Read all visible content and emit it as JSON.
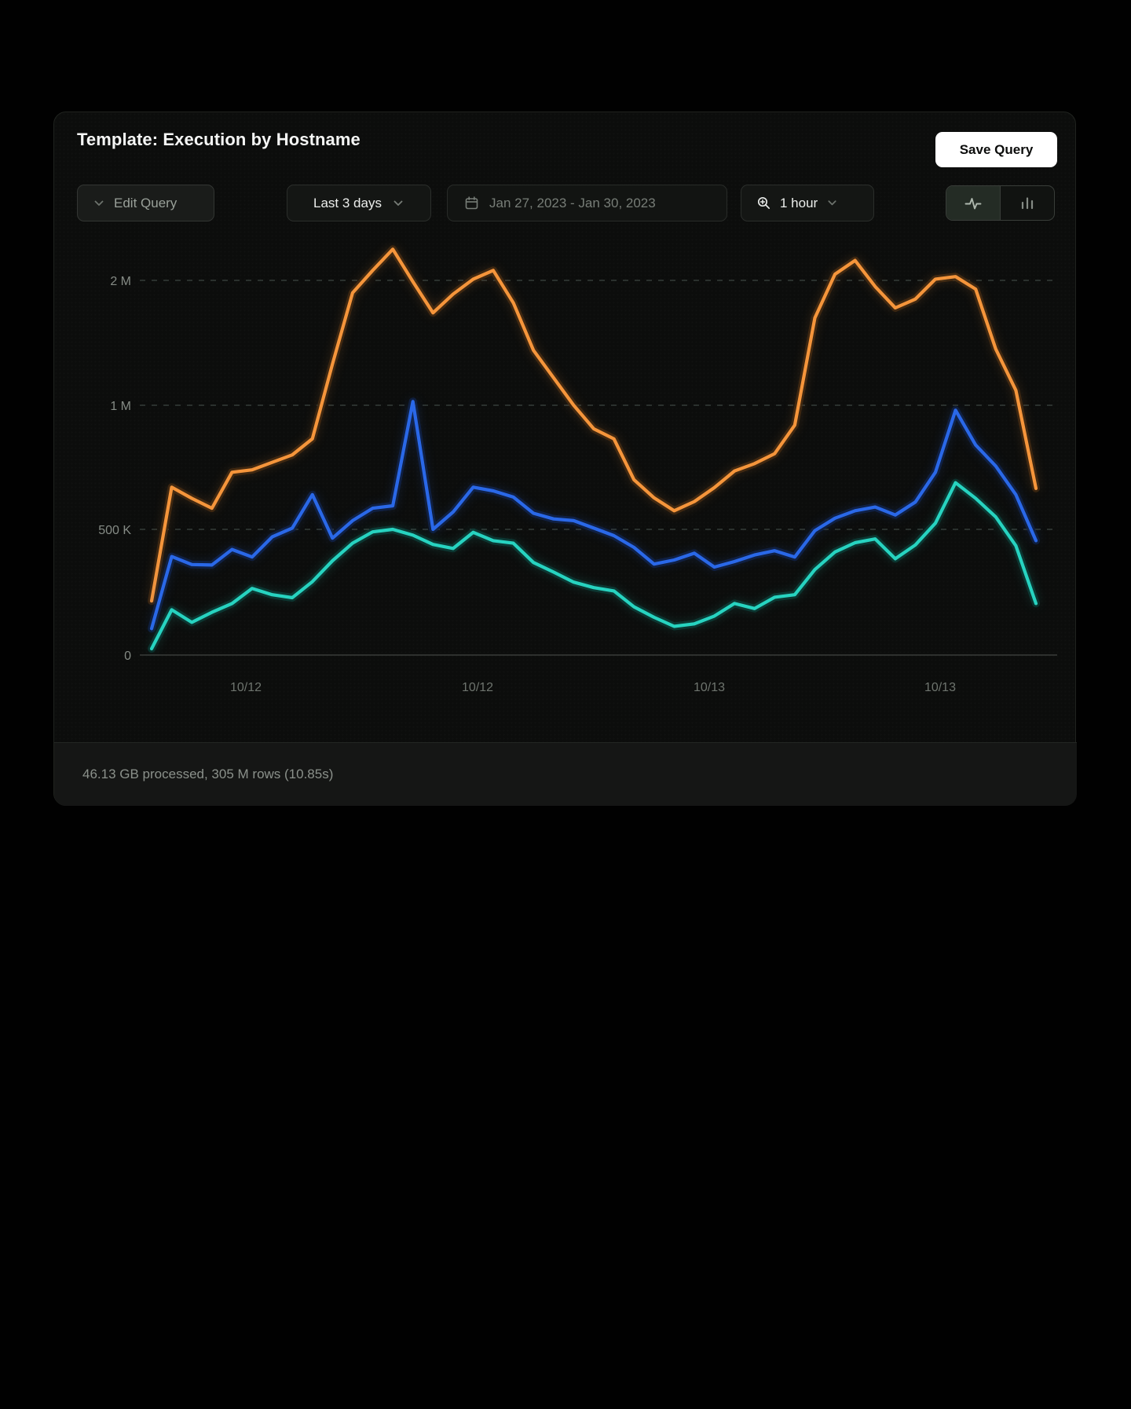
{
  "header": {
    "title": "Template: Execution by Hostname",
    "save_button": "Save Query"
  },
  "toolbar": {
    "edit_query_label": "Edit Query",
    "time_range_label": "Last 3 days",
    "date_range_label": "Jan 27, 2023 - Jan 30, 2023",
    "granularity_label": "1 hour",
    "icons": [
      "chevron-down",
      "calendar",
      "zoom-in",
      "activity-pulse",
      "bar-chart"
    ]
  },
  "footer": {
    "status": "46.13 GB processed, 305 M rows (10.85s)"
  },
  "chart_data": {
    "type": "line",
    "title": "",
    "xlabel": "",
    "ylabel": "",
    "grid": "dashed-horizontal",
    "legend": "none",
    "x_axis": {
      "labels": [
        "10/12",
        "10/12",
        "10/13",
        "10/13"
      ]
    },
    "y_axis": {
      "ticks": [
        {
          "label": "2 M",
          "value": 2000000
        },
        {
          "label": "1 M",
          "value": 1000000
        },
        {
          "label": "500 K",
          "value": 500000
        },
        {
          "label": "0",
          "value": 0
        }
      ],
      "scale": "doubling-per-step"
    },
    "series": [
      {
        "name": "series-orange",
        "color": "#F5953B",
        "halo": "#3a250f",
        "values": [
          215000,
          670000,
          625000,
          585000,
          730000,
          740000,
          770000,
          800000,
          865000,
          1330000,
          1900000,
          2080000,
          2250000,
          1990000,
          1740000,
          1890000,
          2010000,
          2080000,
          1820000,
          1440000,
          1220000,
          1000000,
          905000,
          865000,
          700000,
          627000,
          575000,
          612000,
          668000,
          735000,
          765000,
          805000,
          920000,
          1700000,
          2050000,
          2160000,
          1950000,
          1780000,
          1850000,
          2010000,
          2030000,
          1930000,
          1450000,
          1120000,
          665000
        ]
      },
      {
        "name": "series-blue",
        "color": "#2A68E8",
        "halo": "#0f1f40",
        "values": [
          105000,
          392000,
          360000,
          358000,
          420000,
          390000,
          470000,
          505000,
          640000,
          465000,
          535000,
          585000,
          595000,
          1030000,
          500000,
          570000,
          670000,
          655000,
          630000,
          565000,
          542000,
          535000,
          505000,
          475000,
          428000,
          362000,
          378000,
          405000,
          350000,
          372000,
          398000,
          415000,
          390000,
          495000,
          545000,
          575000,
          590000,
          558000,
          610000,
          730000,
          980000,
          840000,
          755000,
          640000,
          455000
        ]
      },
      {
        "name": "series-teal",
        "color": "#27D3C0",
        "halo": "#0b332e",
        "values": [
          25000,
          180000,
          130000,
          170000,
          205000,
          265000,
          240000,
          228000,
          292000,
          375000,
          445000,
          490000,
          500000,
          477000,
          440000,
          424000,
          488000,
          455000,
          445000,
          368000,
          330000,
          290000,
          268000,
          255000,
          192000,
          150000,
          114000,
          124000,
          155000,
          205000,
          185000,
          230000,
          240000,
          340000,
          410000,
          447000,
          462000,
          383000,
          438000,
          525000,
          688000,
          625000,
          550000,
          435000,
          205000
        ]
      }
    ]
  }
}
